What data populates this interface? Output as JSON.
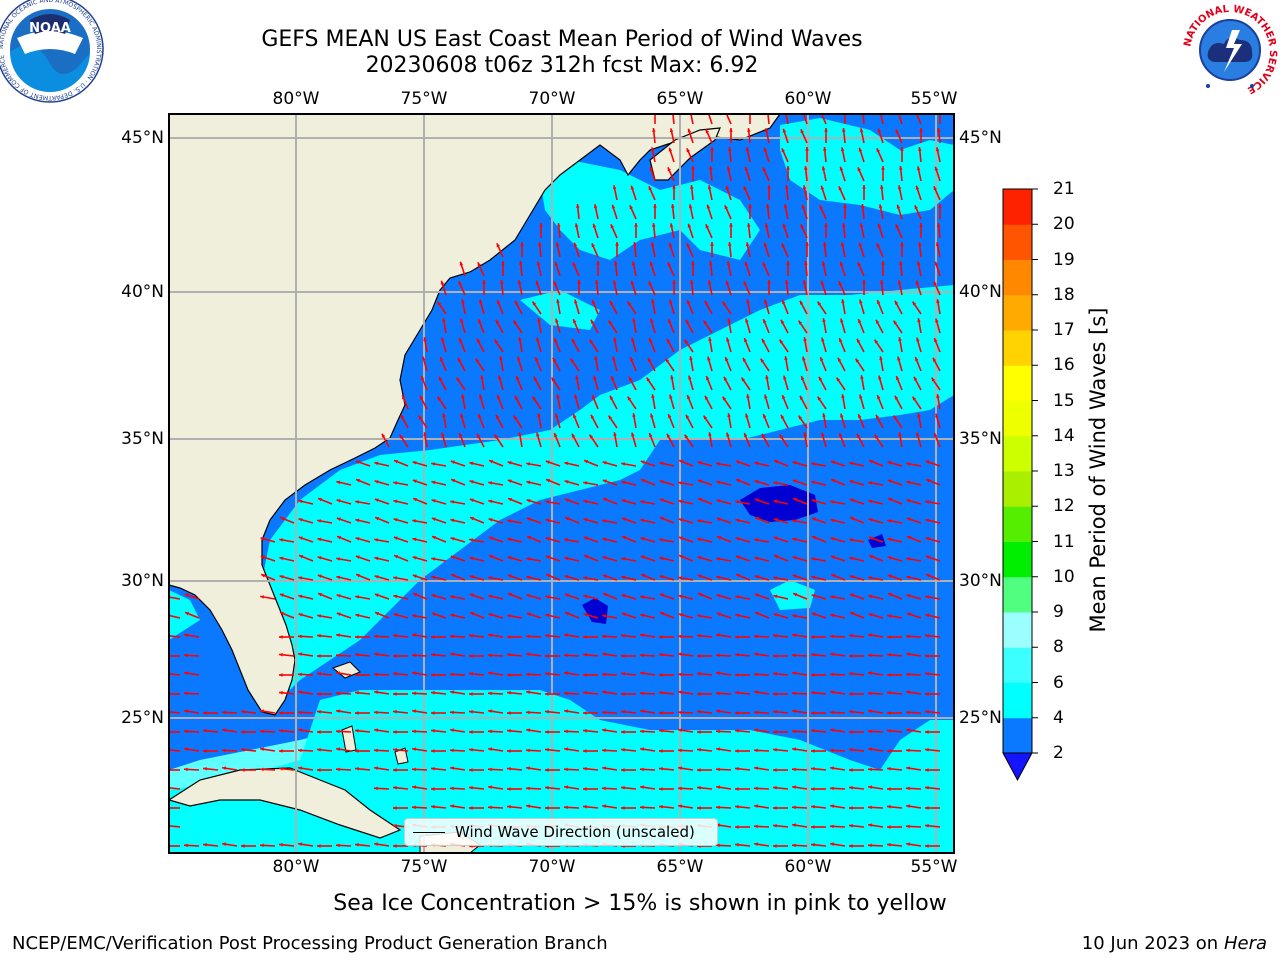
{
  "title": {
    "line1": "GEFS MEAN US East Coast Mean Period of Wind Waves",
    "line2": "20230608 t06z 312h fcst   Max: 6.92"
  },
  "map": {
    "lon_labels": [
      "80°W",
      "75°W",
      "70°W",
      "65°W",
      "60°W",
      "55°W"
    ],
    "lat_labels": [
      "45°N",
      "40°N",
      "35°N",
      "30°N",
      "25°N"
    ],
    "land_color": "#efefdc",
    "grid_color": "#b0b0b0"
  },
  "legend": {
    "text": "Wind Wave Direction (unscaled)"
  },
  "colorbar": {
    "label": "Mean Period of Wind Waves [s]",
    "ticks": [
      "2",
      "4",
      "6",
      "8",
      "9",
      "10",
      "11",
      "12",
      "13",
      "14",
      "15",
      "16",
      "17",
      "18",
      "19",
      "20",
      "21"
    ],
    "colors": [
      "#0a78ff",
      "#00ffff",
      "#3cffff",
      "#9bffff",
      "#50ff80",
      "#00ee00",
      "#55ee00",
      "#aaee00",
      "#ccff00",
      "#eeff00",
      "#ffff00",
      "#ffd200",
      "#ffaa00",
      "#ff8800",
      "#ff5500",
      "#ff2200",
      "#ff0000"
    ],
    "extend_color": "#1414ff"
  },
  "fill_colors": {
    "dark_blue": "#0a78ff",
    "cyan": "#00ffff",
    "light_cyan": "#5effff",
    "deep_blue": "#0000d2",
    "arrow_red": "#ff0000"
  },
  "footer": {
    "note": "Sea Ice Concentration > 15% is shown in pink to yellow",
    "credit": "NCEP/EMC/Verification Post Processing Product Generation Branch",
    "date": "10 Jun 2023 on",
    "machine": "Hera"
  },
  "logos": {
    "noaa_text": "NOAA",
    "noaa_ring": "NATIONAL OCEANIC AND ATMOSPHERIC ADMINISTRATION · U.S. DEPARTMENT OF COMMERCE",
    "nws_ring": "NATIONAL WEATHER SERVICE"
  }
}
